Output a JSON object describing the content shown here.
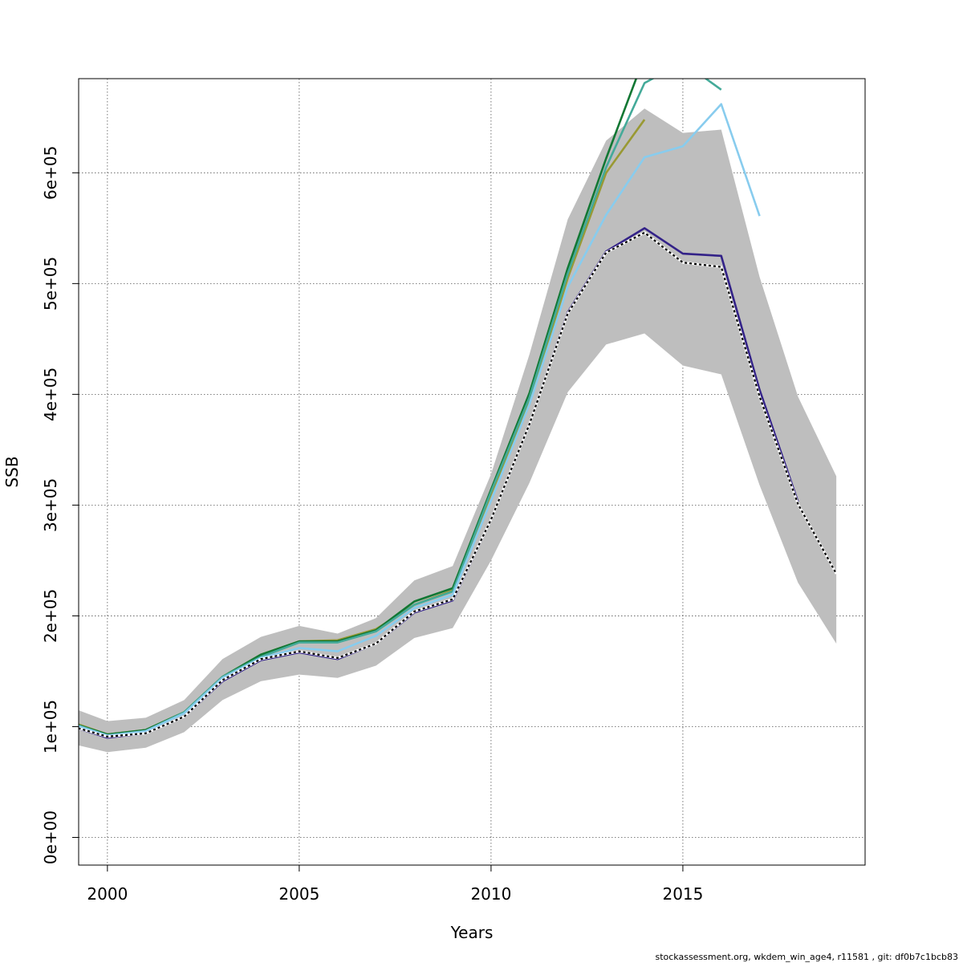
{
  "chart_data": {
    "type": "line",
    "xlabel": "Years",
    "ylabel": "SSB",
    "xlim": [
      1999.25,
      2019.75
    ],
    "ylim": [
      -25000,
      685000
    ],
    "x_ticks": [
      2000,
      2005,
      2010,
      2015
    ],
    "x_tick_labels": [
      "2000",
      "2005",
      "2010",
      "2015"
    ],
    "y_ticks": [
      0,
      100000,
      200000,
      300000,
      400000,
      500000,
      600000
    ],
    "y_tick_labels": [
      "0e+00",
      "1e+05",
      "2e+05",
      "3e+05",
      "4e+05",
      "5e+05",
      "6e+05"
    ],
    "grid": true,
    "confidence_band": {
      "color": "#bebebe",
      "x": [
        1999,
        2000,
        2001,
        2002,
        2003,
        2004,
        2005,
        2006,
        2007,
        2008,
        2009,
        2010,
        2011,
        2012,
        2013,
        2014,
        2015,
        2016,
        2017,
        2018,
        2019
      ],
      "lower": [
        85000,
        77000,
        81000,
        95000,
        124000,
        141000,
        147000,
        144000,
        155000,
        180000,
        189000,
        250000,
        320000,
        402000,
        445000,
        455000,
        426000,
        418000,
        318000,
        230000,
        175000
      ],
      "upper": [
        118000,
        105000,
        108000,
        124000,
        161000,
        181000,
        191000,
        184000,
        198000,
        232000,
        245000,
        328000,
        436000,
        558000,
        629000,
        658000,
        636000,
        639000,
        506000,
        398000,
        326000
      ]
    },
    "series": [
      {
        "color": "#000000",
        "dashed": true,
        "x": [
          1999,
          2000,
          2001,
          2002,
          2003,
          2004,
          2005,
          2006,
          2007,
          2008,
          2009,
          2010,
          2011,
          2012,
          2013,
          2014,
          2015,
          2016,
          2017,
          2018,
          2019
        ],
        "values": [
          101000,
          91000,
          94000,
          109000,
          142000,
          161000,
          168000,
          162000,
          175000,
          204000,
          215000,
          287000,
          373000,
          473000,
          528000,
          546000,
          519000,
          515000,
          398000,
          301000,
          238000
        ]
      },
      {
        "color": "#332288",
        "x": [
          1999,
          2000,
          2001,
          2002,
          2003,
          2004,
          2005,
          2006,
          2007,
          2008,
          2009,
          2010,
          2011,
          2012,
          2013,
          2014,
          2015,
          2016,
          2017,
          2018
        ],
        "values": [
          101000,
          90000,
          94000,
          109000,
          141000,
          160000,
          167000,
          161000,
          175000,
          203000,
          214000,
          287000,
          373000,
          474000,
          529000,
          550000,
          527000,
          525000,
          404000,
          303000
        ]
      },
      {
        "color": "#88ccee",
        "x": [
          1999,
          2000,
          2001,
          2002,
          2003,
          2004,
          2005,
          2006,
          2007,
          2008,
          2009,
          2010,
          2011,
          2012,
          2013,
          2014,
          2015,
          2016,
          2017
        ],
        "values": [
          103000,
          92000,
          96000,
          112000,
          144000,
          162000,
          171000,
          168000,
          182000,
          207000,
          219000,
          304000,
          391000,
          497000,
          562000,
          614000,
          624000,
          662000,
          561000
        ]
      },
      {
        "color": "#44aa99",
        "x": [
          1999,
          2000,
          2001,
          2002,
          2003,
          2004,
          2005,
          2006,
          2007,
          2008,
          2009,
          2010,
          2011,
          2012,
          2013,
          2014,
          2015,
          2016
        ],
        "values": [
          104000,
          92000,
          96000,
          113000,
          145000,
          163000,
          176000,
          176000,
          186000,
          210000,
          222000,
          312000,
          397000,
          509000,
          605000,
          681000,
          700000,
          675000
        ]
      },
      {
        "color": "#117733",
        "x": [
          1999,
          2000,
          2001,
          2002,
          2003,
          2004,
          2005,
          2006,
          2007,
          2008,
          2009,
          2010,
          2011,
          2012,
          2013,
          2014
        ],
        "values": [
          104000,
          93000,
          97000,
          113000,
          145000,
          165000,
          177000,
          177000,
          187000,
          213000,
          225000,
          314000,
          401000,
          514000,
          613000,
          705000
        ]
      },
      {
        "color": "#999933",
        "x": [
          1999,
          2000,
          2001,
          2002,
          2003,
          2004,
          2005,
          2006,
          2007,
          2008,
          2009,
          2010,
          2011,
          2012,
          2013,
          2014
        ],
        "values": [
          105000,
          93000,
          97000,
          113000,
          145000,
          165000,
          177000,
          178000,
          188000,
          210000,
          223000,
          310000,
          393000,
          505000,
          600000,
          648000
        ]
      }
    ]
  },
  "footer": "stockassessment.org, wkdem_win_age4, r11581 , git: df0b7c1bcb83"
}
